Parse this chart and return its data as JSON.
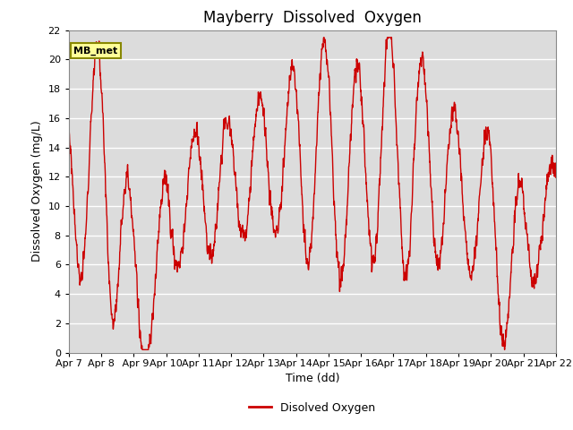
{
  "title": "Mayberry  Dissolved  Oxygen",
  "xlabel": "Time (dd)",
  "ylabel": "Dissolved Oxygen (mg/L)",
  "ylim": [
    0,
    22
  ],
  "yticks": [
    0,
    2,
    4,
    6,
    8,
    10,
    12,
    14,
    16,
    18,
    20,
    22
  ],
  "xtick_labels": [
    "Apr 7",
    "Apr 8",
    " Apr 9",
    "Apr 10",
    "Apr 11",
    "Apr 12",
    "Apr 13",
    "Apr 14",
    "Apr 15",
    "Apr 16",
    "Apr 17",
    "Apr 18",
    "Apr 19",
    "Apr 20",
    "Apr 21",
    "Apr 22"
  ],
  "line_color": "#CC0000",
  "line_width": 1.0,
  "bg_color": "#DCDCDC",
  "grid_color": "#FFFFFF",
  "legend_label": "Disolved Oxygen",
  "annotation_text": "MB_met",
  "annotation_bg": "#FFFF99",
  "annotation_border": "#AAAA00",
  "title_fontsize": 12,
  "axis_fontsize": 9,
  "tick_fontsize": 8
}
